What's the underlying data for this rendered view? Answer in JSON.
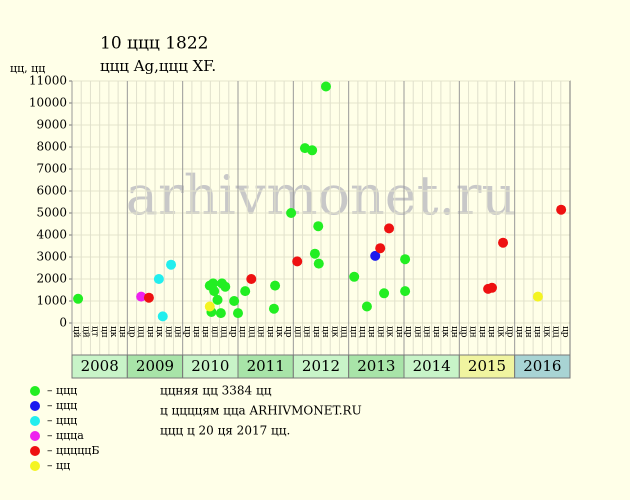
{
  "chart_data": {
    "type": "scatter",
    "title": "10 ццц 1822",
    "subtitle": "ццц Ag,ццц XF.",
    "y_label": "цц, цц",
    "watermark": "arhivmonet.ru",
    "xlim": [
      2008,
      2017
    ],
    "ylim": [
      0,
      11000
    ],
    "yticks": [
      0,
      1000,
      2000,
      3000,
      4000,
      5000,
      6000,
      7000,
      8000,
      9000,
      10000,
      11000
    ],
    "grid": true,
    "column_labels": [
      "цй",
      "цй",
      "цт",
      "цп",
      "цк",
      "цн",
      "цр",
      "цц",
      "цн",
      "цк",
      "цн",
      "цн",
      "цр",
      "цн",
      "цн",
      "цп",
      "цц",
      "цр",
      "цп",
      "цц",
      "цн",
      "цн",
      "цк",
      "цр",
      "цп",
      "цн",
      "цн",
      "цн",
      "цк",
      "цц",
      "цп",
      "цц",
      "цн",
      "цн",
      "цк",
      "цн",
      "цр",
      "цн",
      "цн",
      "цн",
      "цк",
      "цн",
      "цр",
      "цн",
      "цн",
      "цн",
      "цк",
      "цр",
      "цн",
      "цн",
      "цн",
      "цк",
      "цц",
      "цр"
    ],
    "years": [
      {
        "label": "2008",
        "color": "#c8f4c8"
      },
      {
        "label": "2009",
        "color": "#a8e4a8"
      },
      {
        "label": "2010",
        "color": "#c8f4c8"
      },
      {
        "label": "2011",
        "color": "#a8e4a8"
      },
      {
        "label": "2012",
        "color": "#c8f4c8"
      },
      {
        "label": "2013",
        "color": "#a8e4a8"
      },
      {
        "label": "2014",
        "color": "#c8f4c8"
      },
      {
        "label": "2015",
        "color": "#f0f4a0"
      },
      {
        "label": "2016",
        "color": "#a8d4d4"
      }
    ],
    "series": [
      {
        "name": "– ццц",
        "color": "#22ee22",
        "x": [
          2008.11,
          2010.49,
          2010.55,
          2010.52,
          2010.57,
          2010.63,
          2010.69,
          2010.71,
          2010.77,
          2010.93,
          2011.0,
          2011.13,
          2011.65,
          2011.67,
          2011.96,
          2012.21,
          2012.34,
          2012.39,
          2012.45,
          2012.46,
          2012.59,
          2013.1,
          2013.33,
          2013.64,
          2014.02,
          2014.02
        ],
        "values": [
          1100,
          1700,
          1800,
          500,
          1450,
          1050,
          450,
          1800,
          1650,
          1000,
          450,
          1450,
          650,
          1700,
          5000,
          7950,
          7850,
          3150,
          4400,
          2700,
          10750,
          2100,
          750,
          1350,
          2900,
          1450
        ]
      },
      {
        "name": "– ццц",
        "color": "#1a1aee",
        "x": [
          2013.48
        ],
        "values": [
          3050
        ]
      },
      {
        "name": "– ццц",
        "color": "#22eeee",
        "x": [
          2009.57,
          2009.64,
          2009.79
        ],
        "values": [
          2000,
          300,
          2650
        ]
      },
      {
        "name": "– ццца",
        "color": "#ee22ee",
        "x": [
          2009.25
        ],
        "values": [
          1200
        ]
      },
      {
        "name": "– цццццБ",
        "color": "#ee1111",
        "x": [
          2009.39,
          2011.24,
          2012.07,
          2013.57,
          2013.73,
          2015.52,
          2015.59,
          2015.79,
          2016.84
        ],
        "values": [
          1150,
          2000,
          2800,
          3400,
          4300,
          1550,
          1600,
          3650,
          5150
        ]
      },
      {
        "name": "– цц",
        "color": "#f4f422",
        "x": [
          2010.49,
          2016.42
        ],
        "values": [
          750,
          1200
        ]
      }
    ],
    "notes": [
      "ццняя цц 3384 цц",
      "ц ццццям цца ARHIVMONET.RU",
      "ццц ц 20 ця 2017 цц."
    ]
  }
}
